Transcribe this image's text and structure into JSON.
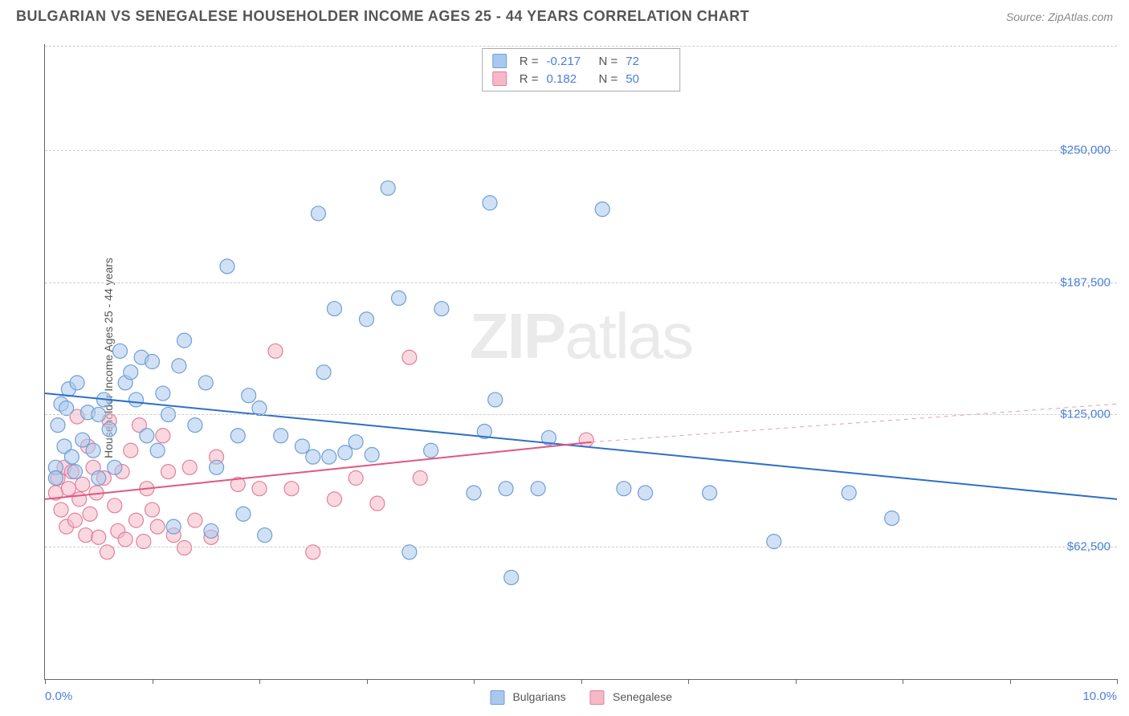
{
  "title": "BULGARIAN VS SENEGALESE HOUSEHOLDER INCOME AGES 25 - 44 YEARS CORRELATION CHART",
  "source": "Source: ZipAtlas.com",
  "watermark_bold": "ZIP",
  "watermark_light": "atlas",
  "chart": {
    "type": "scatter",
    "xlim": [
      0,
      10
    ],
    "ylim": [
      0,
      300000
    ],
    "x_start_label": "0.0%",
    "x_end_label": "10.0%",
    "y_ticks": [
      62500,
      125000,
      187500,
      250000
    ],
    "y_tick_labels": [
      "$62,500",
      "$125,000",
      "$187,500",
      "$250,000"
    ],
    "y_axis_label": "Householder Income Ages 25 - 44 years",
    "x_tick_positions": [
      0,
      1,
      2,
      3,
      4,
      5,
      6,
      7,
      8,
      9,
      10
    ],
    "grid_color": "#cccccc",
    "background_color": "#ffffff",
    "marker_radius": 9,
    "series": [
      {
        "name": "Bulgarians",
        "fill": "#a9c8ed",
        "stroke": "#6f9fd6",
        "fill_opacity": 0.55,
        "r_value": "-0.217",
        "n_value": "72",
        "trend": {
          "x1": 0,
          "y1": 135000,
          "x2": 10,
          "y2": 85000,
          "stroke": "#2f6fc9",
          "width": 2,
          "dash": "none"
        },
        "points": [
          [
            0.1,
            100000
          ],
          [
            0.1,
            95000
          ],
          [
            0.12,
            120000
          ],
          [
            0.15,
            130000
          ],
          [
            0.18,
            110000
          ],
          [
            0.2,
            128000
          ],
          [
            0.22,
            137000
          ],
          [
            0.25,
            105000
          ],
          [
            0.28,
            98000
          ],
          [
            0.3,
            140000
          ],
          [
            0.35,
            113000
          ],
          [
            0.4,
            126000
          ],
          [
            0.45,
            108000
          ],
          [
            0.5,
            125000
          ],
          [
            0.55,
            132000
          ],
          [
            0.6,
            118000
          ],
          [
            0.65,
            100000
          ],
          [
            0.7,
            155000
          ],
          [
            0.75,
            140000
          ],
          [
            0.8,
            145000
          ],
          [
            0.85,
            132000
          ],
          [
            0.9,
            152000
          ],
          [
            0.95,
            115000
          ],
          [
            1.0,
            150000
          ],
          [
            1.05,
            108000
          ],
          [
            1.1,
            135000
          ],
          [
            1.15,
            125000
          ],
          [
            1.2,
            72000
          ],
          [
            1.25,
            148000
          ],
          [
            1.3,
            160000
          ],
          [
            1.4,
            120000
          ],
          [
            1.5,
            140000
          ],
          [
            1.55,
            70000
          ],
          [
            1.6,
            100000
          ],
          [
            1.7,
            195000
          ],
          [
            1.8,
            115000
          ],
          [
            1.85,
            78000
          ],
          [
            1.9,
            134000
          ],
          [
            2.0,
            128000
          ],
          [
            2.05,
            68000
          ],
          [
            2.2,
            115000
          ],
          [
            2.4,
            110000
          ],
          [
            2.5,
            105000
          ],
          [
            2.55,
            220000
          ],
          [
            2.6,
            145000
          ],
          [
            2.65,
            105000
          ],
          [
            2.7,
            175000
          ],
          [
            2.8,
            107000
          ],
          [
            2.9,
            112000
          ],
          [
            3.0,
            170000
          ],
          [
            3.05,
            106000
          ],
          [
            3.2,
            232000
          ],
          [
            3.3,
            180000
          ],
          [
            3.4,
            60000
          ],
          [
            3.6,
            108000
          ],
          [
            3.7,
            175000
          ],
          [
            4.0,
            88000
          ],
          [
            4.1,
            117000
          ],
          [
            4.15,
            225000
          ],
          [
            4.2,
            132000
          ],
          [
            4.3,
            90000
          ],
          [
            4.35,
            48000
          ],
          [
            4.6,
            90000
          ],
          [
            4.7,
            114000
          ],
          [
            5.2,
            222000
          ],
          [
            5.4,
            90000
          ],
          [
            5.6,
            88000
          ],
          [
            6.8,
            65000
          ],
          [
            7.5,
            88000
          ],
          [
            7.9,
            76000
          ],
          [
            6.2,
            88000
          ],
          [
            0.5,
            95000
          ]
        ]
      },
      {
        "name": "Senegalese",
        "fill": "#f5b8c6",
        "stroke": "#e37f9c",
        "fill_opacity": 0.55,
        "r_value": "0.182",
        "n_value": "50",
        "trend_solid": {
          "x1": 0,
          "y1": 85000,
          "x2": 5.1,
          "y2": 112000,
          "stroke": "#e05780",
          "width": 2,
          "dash": "none"
        },
        "trend_dash": {
          "x1": 5.1,
          "y1": 112000,
          "x2": 10,
          "y2": 130000,
          "stroke": "#e89bb0",
          "width": 1,
          "dash": "5,5"
        },
        "points": [
          [
            0.1,
            88000
          ],
          [
            0.12,
            95000
          ],
          [
            0.15,
            80000
          ],
          [
            0.18,
            100000
          ],
          [
            0.2,
            72000
          ],
          [
            0.22,
            90000
          ],
          [
            0.25,
            98000
          ],
          [
            0.28,
            75000
          ],
          [
            0.3,
            124000
          ],
          [
            0.32,
            85000
          ],
          [
            0.35,
            92000
          ],
          [
            0.38,
            68000
          ],
          [
            0.4,
            110000
          ],
          [
            0.42,
            78000
          ],
          [
            0.45,
            100000
          ],
          [
            0.48,
            88000
          ],
          [
            0.5,
            67000
          ],
          [
            0.55,
            95000
          ],
          [
            0.58,
            60000
          ],
          [
            0.6,
            122000
          ],
          [
            0.65,
            82000
          ],
          [
            0.68,
            70000
          ],
          [
            0.72,
            98000
          ],
          [
            0.75,
            66000
          ],
          [
            0.8,
            108000
          ],
          [
            0.85,
            75000
          ],
          [
            0.88,
            120000
          ],
          [
            0.92,
            65000
          ],
          [
            0.95,
            90000
          ],
          [
            1.0,
            80000
          ],
          [
            1.05,
            72000
          ],
          [
            1.1,
            115000
          ],
          [
            1.15,
            98000
          ],
          [
            1.2,
            68000
          ],
          [
            1.3,
            62000
          ],
          [
            1.35,
            100000
          ],
          [
            1.4,
            75000
          ],
          [
            1.55,
            67000
          ],
          [
            1.6,
            105000
          ],
          [
            1.8,
            92000
          ],
          [
            2.0,
            90000
          ],
          [
            2.15,
            155000
          ],
          [
            2.3,
            90000
          ],
          [
            2.5,
            60000
          ],
          [
            2.7,
            85000
          ],
          [
            2.9,
            95000
          ],
          [
            3.1,
            83000
          ],
          [
            3.4,
            152000
          ],
          [
            3.5,
            95000
          ],
          [
            5.05,
            113000
          ]
        ]
      }
    ],
    "top_legend_r_label": "R =",
    "top_legend_n_label": "N ="
  }
}
